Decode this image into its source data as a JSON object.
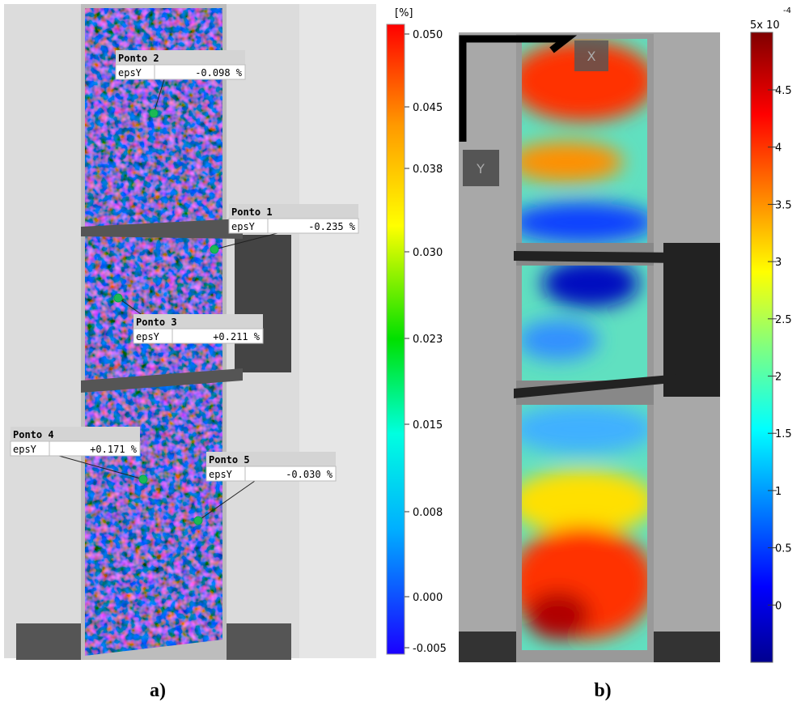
{
  "panel_a": {
    "points": [
      {
        "name": "Ponto 2",
        "quantity": "epsY",
        "value": "-0.098 %"
      },
      {
        "name": "Ponto 1",
        "quantity": "epsY",
        "value": "-0.235 %"
      },
      {
        "name": "Ponto 3",
        "quantity": "epsY",
        "value": "+0.211 %"
      },
      {
        "name": "Ponto 4",
        "quantity": "epsY",
        "value": "+0.171 %"
      },
      {
        "name": "Ponto 5",
        "quantity": "epsY",
        "value": "-0.030 %"
      }
    ],
    "colorbar": {
      "unit": "[%]",
      "ticks": [
        "0.050",
        "0.045",
        "0.038",
        "0.030",
        "0.023",
        "0.015",
        "0.008",
        "0.000",
        "-0.005"
      ]
    },
    "caption": "a)"
  },
  "panel_b": {
    "axes": {
      "x": "X",
      "y": "Y"
    },
    "colorbar": {
      "scale": "5x 10",
      "exponent": "-4",
      "ticks": [
        "4.5",
        "4",
        "3.5",
        "3",
        "2.5",
        "2",
        "1.5",
        "1",
        "0.5",
        "0"
      ]
    },
    "caption": "b)"
  }
}
